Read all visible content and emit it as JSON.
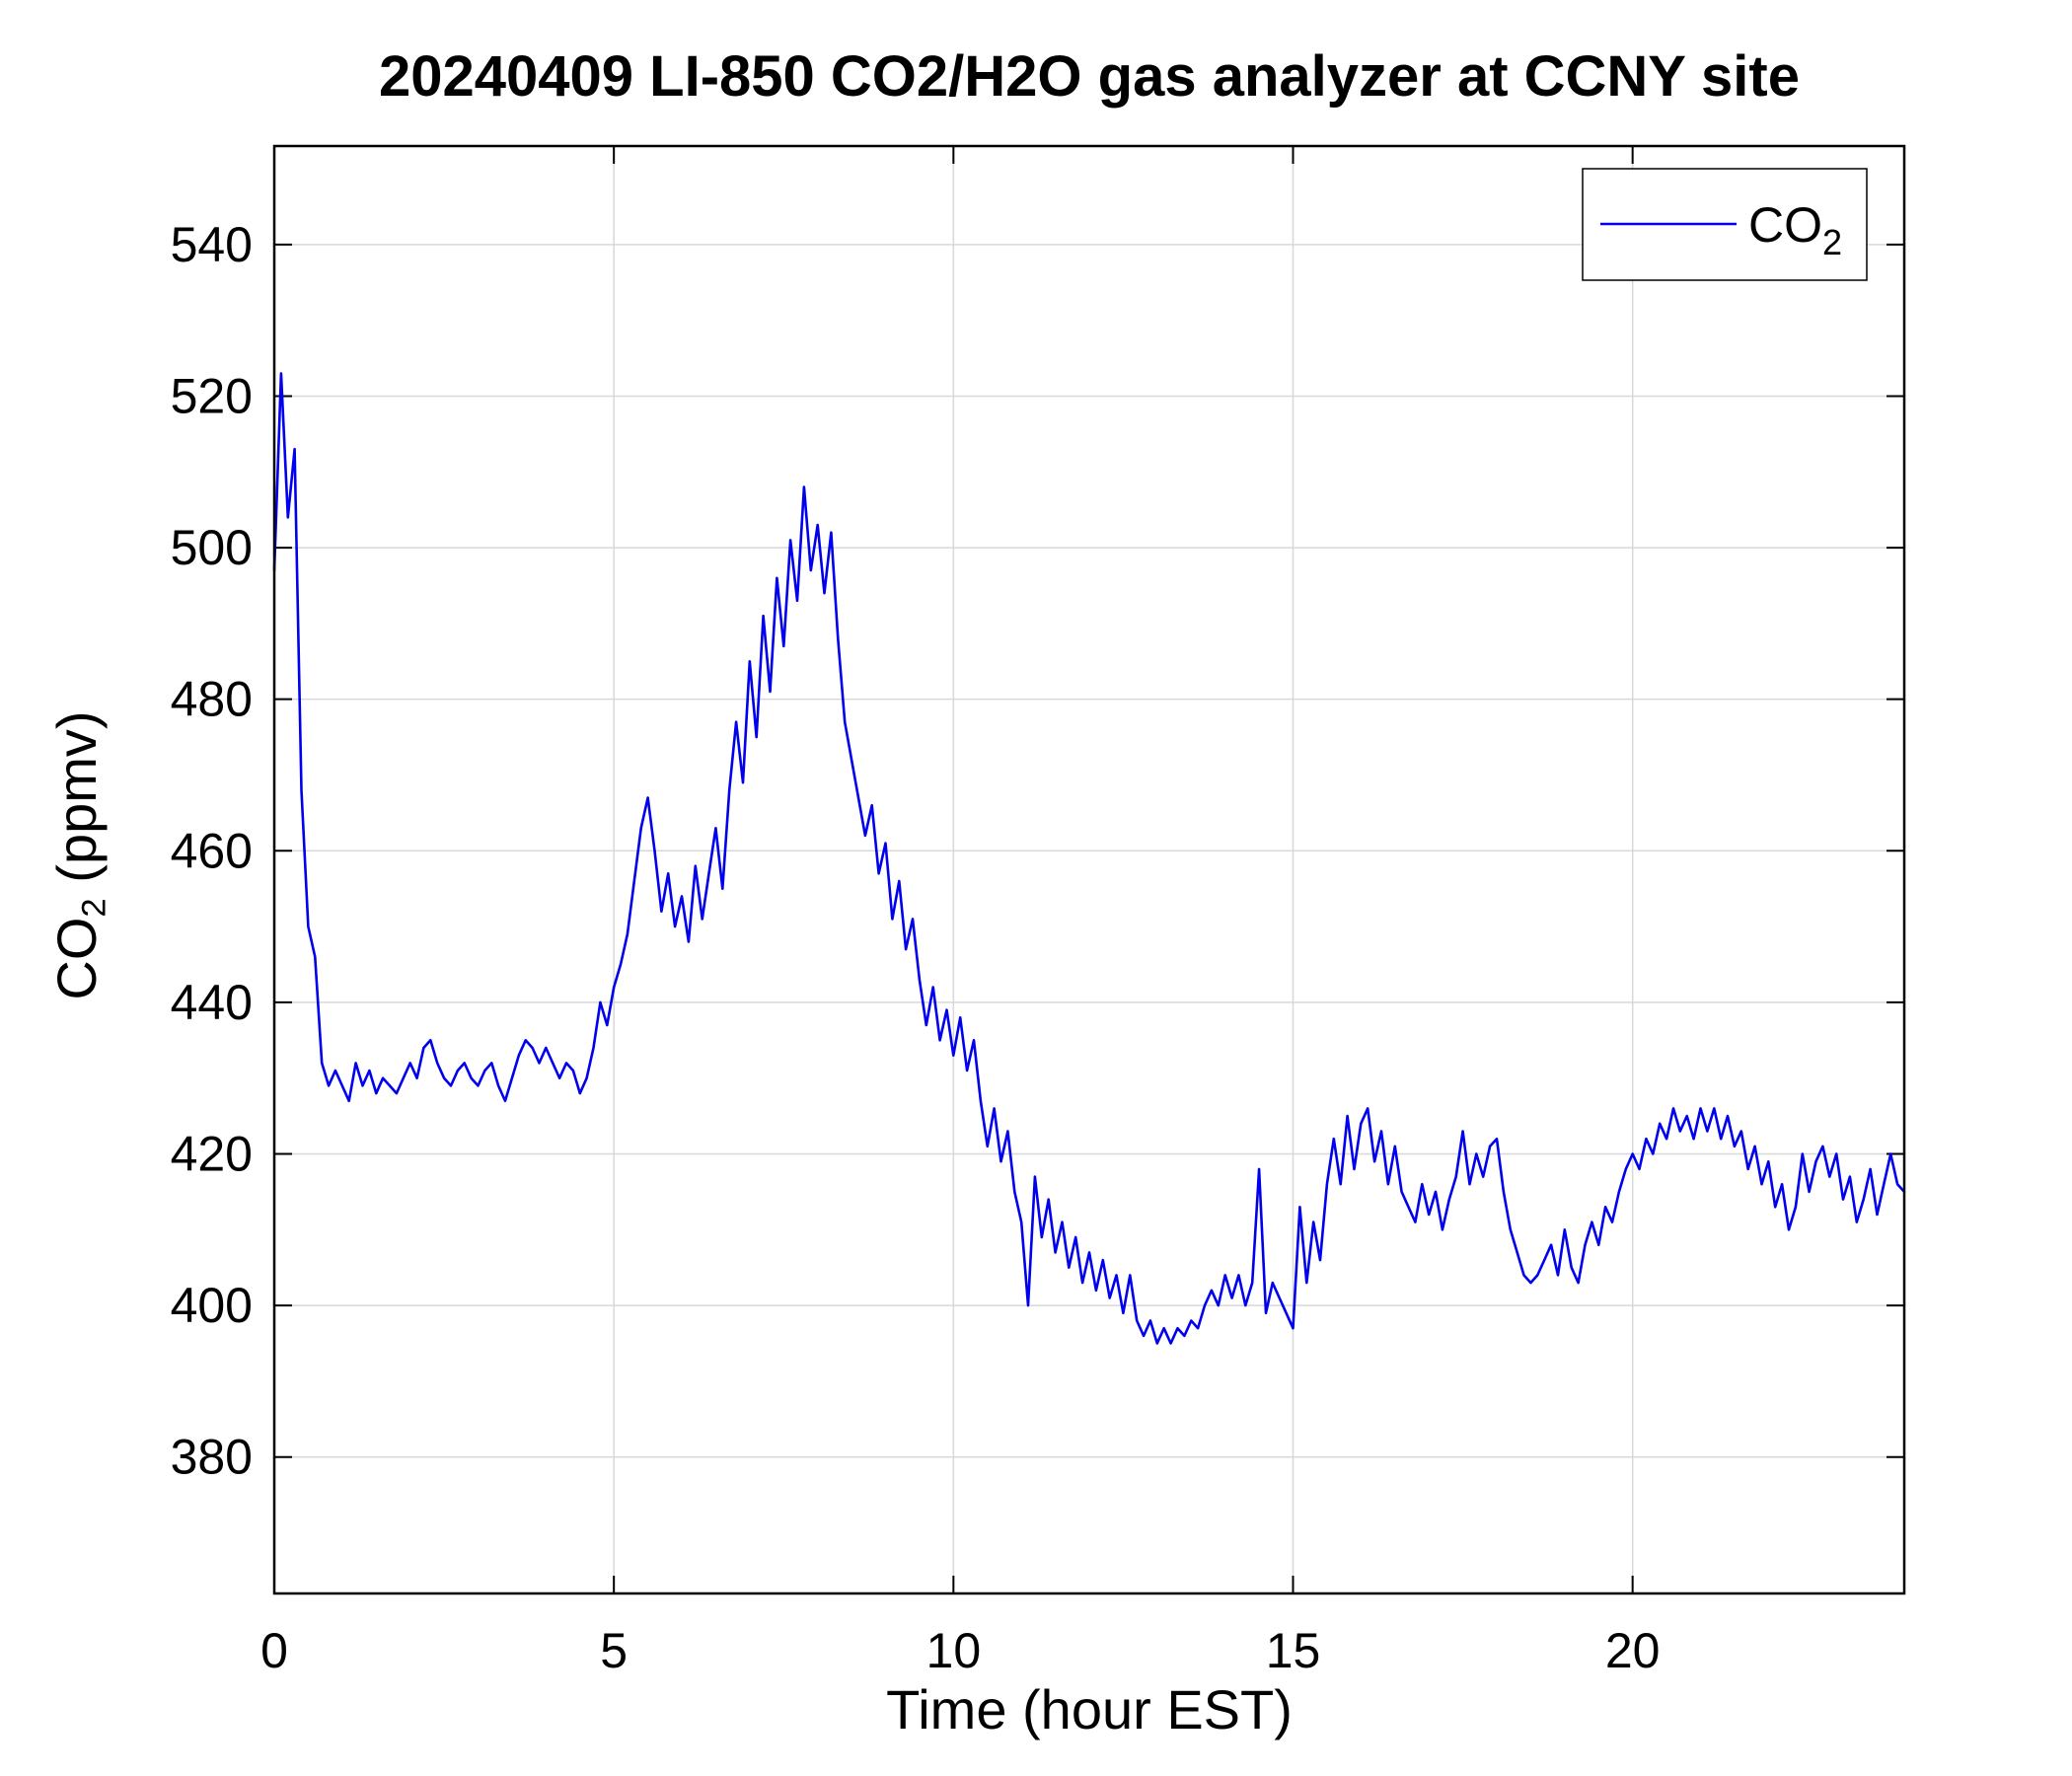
{
  "figure": {
    "title": "20240409 LI-850 CO2/H2O gas analyzer at CCNY site"
  },
  "chart_data": {
    "type": "line",
    "title": "20240409 LI-850 CO2/H2O gas analyzer at CCNY site",
    "xlabel": "Time (hour EST)",
    "ylabel": "CO2 (ppmv)",
    "ylabel_parts": {
      "pre": "CO",
      "sub": "2",
      "post": " (ppmv)"
    },
    "xlim": [
      0,
      24
    ],
    "ylim": [
      362,
      553
    ],
    "xticks": [
      0,
      5,
      10,
      15,
      20
    ],
    "yticks": [
      380,
      400,
      420,
      440,
      460,
      480,
      500,
      520,
      540
    ],
    "grid": true,
    "legend": {
      "position": "top-right",
      "entries": [
        {
          "label": "CO2",
          "label_parts": {
            "pre": "CO",
            "sub": "2"
          },
          "color": "#0000ee"
        }
      ]
    },
    "series": [
      {
        "name": "CO2",
        "color": "#0000ee",
        "points": [
          [
            0,
            497
          ],
          [
            0.1,
            523
          ],
          [
            0.2,
            504
          ],
          [
            0.3,
            513
          ],
          [
            0.4,
            468
          ],
          [
            0.5,
            450
          ],
          [
            0.6,
            446
          ],
          [
            0.7,
            432
          ],
          [
            0.8,
            429
          ],
          [
            0.9,
            431
          ],
          [
            1,
            429
          ],
          [
            1.1,
            427
          ],
          [
            1.2,
            432
          ],
          [
            1.3,
            429
          ],
          [
            1.4,
            431
          ],
          [
            1.5,
            428
          ],
          [
            1.6,
            430
          ],
          [
            1.7,
            429
          ],
          [
            1.8,
            428
          ],
          [
            1.9,
            430
          ],
          [
            2,
            432
          ],
          [
            2.1,
            430
          ],
          [
            2.2,
            434
          ],
          [
            2.3,
            435
          ],
          [
            2.4,
            432
          ],
          [
            2.5,
            430
          ],
          [
            2.6,
            429
          ],
          [
            2.7,
            431
          ],
          [
            2.8,
            432
          ],
          [
            2.9,
            430
          ],
          [
            3,
            429
          ],
          [
            3.1,
            431
          ],
          [
            3.2,
            432
          ],
          [
            3.3,
            429
          ],
          [
            3.4,
            427
          ],
          [
            3.5,
            430
          ],
          [
            3.6,
            433
          ],
          [
            3.7,
            435
          ],
          [
            3.8,
            434
          ],
          [
            3.9,
            432
          ],
          [
            4,
            434
          ],
          [
            4.1,
            432
          ],
          [
            4.2,
            430
          ],
          [
            4.3,
            432
          ],
          [
            4.4,
            431
          ],
          [
            4.5,
            428
          ],
          [
            4.6,
            430
          ],
          [
            4.7,
            434
          ],
          [
            4.8,
            440
          ],
          [
            4.9,
            437
          ],
          [
            5,
            442
          ],
          [
            5.1,
            445
          ],
          [
            5.2,
            449
          ],
          [
            5.3,
            456
          ],
          [
            5.4,
            463
          ],
          [
            5.5,
            467
          ],
          [
            5.6,
            460
          ],
          [
            5.7,
            452
          ],
          [
            5.8,
            457
          ],
          [
            5.9,
            450
          ],
          [
            6,
            454
          ],
          [
            6.1,
            448
          ],
          [
            6.2,
            458
          ],
          [
            6.3,
            451
          ],
          [
            6.4,
            457
          ],
          [
            6.5,
            463
          ],
          [
            6.6,
            455
          ],
          [
            6.7,
            468
          ],
          [
            6.8,
            477
          ],
          [
            6.9,
            469
          ],
          [
            7,
            485
          ],
          [
            7.1,
            475
          ],
          [
            7.2,
            491
          ],
          [
            7.3,
            481
          ],
          [
            7.4,
            496
          ],
          [
            7.5,
            487
          ],
          [
            7.6,
            501
          ],
          [
            7.7,
            493
          ],
          [
            7.8,
            508
          ],
          [
            7.9,
            497
          ],
          [
            8,
            503
          ],
          [
            8.1,
            494
          ],
          [
            8.2,
            502
          ],
          [
            8.3,
            488
          ],
          [
            8.4,
            477
          ],
          [
            8.5,
            472
          ],
          [
            8.6,
            467
          ],
          [
            8.7,
            462
          ],
          [
            8.8,
            466
          ],
          [
            8.9,
            457
          ],
          [
            9,
            461
          ],
          [
            9.1,
            451
          ],
          [
            9.2,
            456
          ],
          [
            9.3,
            447
          ],
          [
            9.4,
            451
          ],
          [
            9.5,
            443
          ],
          [
            9.6,
            437
          ],
          [
            9.7,
            442
          ],
          [
            9.8,
            435
          ],
          [
            9.9,
            439
          ],
          [
            10,
            433
          ],
          [
            10.1,
            438
          ],
          [
            10.2,
            431
          ],
          [
            10.3,
            435
          ],
          [
            10.4,
            427
          ],
          [
            10.5,
            421
          ],
          [
            10.6,
            426
          ],
          [
            10.7,
            419
          ],
          [
            10.8,
            423
          ],
          [
            10.9,
            415
          ],
          [
            11,
            411
          ],
          [
            11.1,
            400
          ],
          [
            11.2,
            417
          ],
          [
            11.3,
            409
          ],
          [
            11.4,
            414
          ],
          [
            11.5,
            407
          ],
          [
            11.6,
            411
          ],
          [
            11.7,
            405
          ],
          [
            11.8,
            409
          ],
          [
            11.9,
            403
          ],
          [
            12,
            407
          ],
          [
            12.1,
            402
          ],
          [
            12.2,
            406
          ],
          [
            12.3,
            401
          ],
          [
            12.4,
            404
          ],
          [
            12.5,
            399
          ],
          [
            12.6,
            404
          ],
          [
            12.7,
            398
          ],
          [
            12.8,
            396
          ],
          [
            12.9,
            398
          ],
          [
            13,
            395
          ],
          [
            13.1,
            397
          ],
          [
            13.2,
            395
          ],
          [
            13.3,
            397
          ],
          [
            13.4,
            396
          ],
          [
            13.5,
            398
          ],
          [
            13.6,
            397
          ],
          [
            13.7,
            400
          ],
          [
            13.8,
            402
          ],
          [
            13.9,
            400
          ],
          [
            14,
            404
          ],
          [
            14.1,
            401
          ],
          [
            14.2,
            404
          ],
          [
            14.3,
            400
          ],
          [
            14.4,
            403
          ],
          [
            14.5,
            418
          ],
          [
            14.6,
            399
          ],
          [
            14.7,
            403
          ],
          [
            14.8,
            401
          ],
          [
            14.9,
            399
          ],
          [
            15,
            397
          ],
          [
            15.1,
            413
          ],
          [
            15.2,
            403
          ],
          [
            15.3,
            411
          ],
          [
            15.4,
            406
          ],
          [
            15.5,
            416
          ],
          [
            15.6,
            422
          ],
          [
            15.7,
            416
          ],
          [
            15.8,
            425
          ],
          [
            15.9,
            418
          ],
          [
            16,
            424
          ],
          [
            16.1,
            426
          ],
          [
            16.2,
            419
          ],
          [
            16.3,
            423
          ],
          [
            16.4,
            416
          ],
          [
            16.5,
            421
          ],
          [
            16.6,
            415
          ],
          [
            16.7,
            413
          ],
          [
            16.8,
            411
          ],
          [
            16.9,
            416
          ],
          [
            17,
            412
          ],
          [
            17.1,
            415
          ],
          [
            17.2,
            410
          ],
          [
            17.3,
            414
          ],
          [
            17.4,
            417
          ],
          [
            17.5,
            423
          ],
          [
            17.6,
            416
          ],
          [
            17.7,
            420
          ],
          [
            17.8,
            417
          ],
          [
            17.9,
            421
          ],
          [
            18,
            422
          ],
          [
            18.1,
            415
          ],
          [
            18.2,
            410
          ],
          [
            18.3,
            407
          ],
          [
            18.4,
            404
          ],
          [
            18.5,
            403
          ],
          [
            18.6,
            404
          ],
          [
            18.7,
            406
          ],
          [
            18.8,
            408
          ],
          [
            18.9,
            404
          ],
          [
            19,
            410
          ],
          [
            19.1,
            405
          ],
          [
            19.2,
            403
          ],
          [
            19.3,
            408
          ],
          [
            19.4,
            411
          ],
          [
            19.5,
            408
          ],
          [
            19.6,
            413
          ],
          [
            19.7,
            411
          ],
          [
            19.8,
            415
          ],
          [
            19.9,
            418
          ],
          [
            20,
            420
          ],
          [
            20.1,
            418
          ],
          [
            20.2,
            422
          ],
          [
            20.3,
            420
          ],
          [
            20.4,
            424
          ],
          [
            20.5,
            422
          ],
          [
            20.6,
            426
          ],
          [
            20.7,
            423
          ],
          [
            20.8,
            425
          ],
          [
            20.9,
            422
          ],
          [
            21,
            426
          ],
          [
            21.1,
            423
          ],
          [
            21.2,
            426
          ],
          [
            21.3,
            422
          ],
          [
            21.4,
            425
          ],
          [
            21.5,
            421
          ],
          [
            21.6,
            423
          ],
          [
            21.7,
            418
          ],
          [
            21.8,
            421
          ],
          [
            21.9,
            416
          ],
          [
            22,
            419
          ],
          [
            22.1,
            413
          ],
          [
            22.2,
            416
          ],
          [
            22.3,
            410
          ],
          [
            22.4,
            413
          ],
          [
            22.5,
            420
          ],
          [
            22.6,
            415
          ],
          [
            22.7,
            419
          ],
          [
            22.8,
            421
          ],
          [
            22.9,
            417
          ],
          [
            23,
            420
          ],
          [
            23.1,
            414
          ],
          [
            23.2,
            417
          ],
          [
            23.3,
            411
          ],
          [
            23.4,
            414
          ],
          [
            23.5,
            418
          ],
          [
            23.6,
            412
          ],
          [
            23.7,
            416
          ],
          [
            23.8,
            420
          ],
          [
            23.9,
            416
          ],
          [
            24,
            415
          ]
        ]
      }
    ]
  }
}
